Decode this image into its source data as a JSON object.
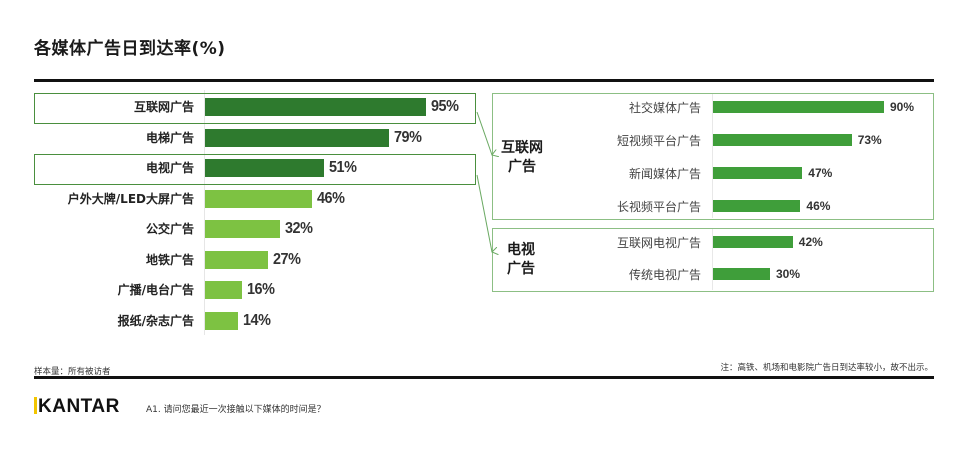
{
  "header": {
    "title": "各媒体广告日到达率(%)"
  },
  "colors": {
    "highlight_bar": "#2e7a2e",
    "normal_bar": "#7dc242",
    "sub_bar": "#3f9e3a",
    "highlight_border": "#4a8f3e",
    "panel_border": "#8cbf84",
    "kantar_accent": "#f2c500"
  },
  "main": {
    "rows": [
      {
        "label": "互联网广告",
        "value": 95,
        "display": "95%",
        "highlight": true
      },
      {
        "label": "电梯广告",
        "value": 79,
        "display": "79%",
        "highlight": true
      },
      {
        "label": "电视广告",
        "value": 51,
        "display": "51%",
        "highlight": true
      },
      {
        "label": "户外大牌/LED大屏广告",
        "value": 46,
        "display": "46%",
        "highlight": false
      },
      {
        "label": "公交广告",
        "value": 32,
        "display": "32%",
        "highlight": false
      },
      {
        "label": "地铁广告",
        "value": 27,
        "display": "27%",
        "highlight": false
      },
      {
        "label": "广播/电台广告",
        "value": 16,
        "display": "16%",
        "highlight": false
      },
      {
        "label": "报纸/杂志广告",
        "value": 14,
        "display": "14%",
        "highlight": false
      }
    ]
  },
  "panels": [
    {
      "title_line1": "互联网",
      "title_line2": "广告",
      "rows": [
        {
          "label": "社交媒体广告",
          "value": 90,
          "display": "90%"
        },
        {
          "label": "短视频平台广告",
          "value": 73,
          "display": "73%"
        },
        {
          "label": "新闻媒体广告",
          "value": 47,
          "display": "47%"
        },
        {
          "label": "长视频平台广告",
          "value": 46,
          "display": "46%"
        }
      ]
    },
    {
      "title_line1": "电视",
      "title_line2": "广告",
      "rows": [
        {
          "label": "互联网电视广告",
          "value": 42,
          "display": "42%"
        },
        {
          "label": "传统电视广告",
          "value": 30,
          "display": "30%"
        }
      ]
    }
  ],
  "footer": {
    "sample": "样本量：所有被访者",
    "note": "注：高铁、机场和电影院广告日到达率较小，故不出示。",
    "brand": "KANTAR",
    "question": "A1. 请问您最近一次接触以下媒体的时间是？"
  },
  "chart_data": [
    {
      "type": "bar",
      "orientation": "horizontal",
      "title": "各媒体广告日到达率(%)",
      "categories": [
        "互联网广告",
        "电梯广告",
        "电视广告",
        "户外大牌/LED大屏广告",
        "公交广告",
        "地铁广告",
        "广播/电台广告",
        "报纸/杂志广告"
      ],
      "values": [
        95,
        79,
        51,
        46,
        32,
        27,
        16,
        14
      ],
      "unit": "%",
      "highlighted": [
        "互联网广告",
        "电视广告"
      ],
      "xlabel": "",
      "ylabel": "",
      "xlim": [
        0,
        100
      ],
      "grid": false,
      "legend": "none"
    },
    {
      "type": "bar",
      "orientation": "horizontal",
      "title": "互联网广告",
      "categories": [
        "社交媒体广告",
        "短视频平台广告",
        "新闻媒体广告",
        "长视频平台广告"
      ],
      "values": [
        90,
        73,
        47,
        46
      ],
      "unit": "%",
      "xlim": [
        0,
        100
      ]
    },
    {
      "type": "bar",
      "orientation": "horizontal",
      "title": "电视广告",
      "categories": [
        "互联网电视广告",
        "传统电视广告"
      ],
      "values": [
        42,
        30
      ],
      "unit": "%",
      "xlim": [
        0,
        100
      ]
    }
  ]
}
